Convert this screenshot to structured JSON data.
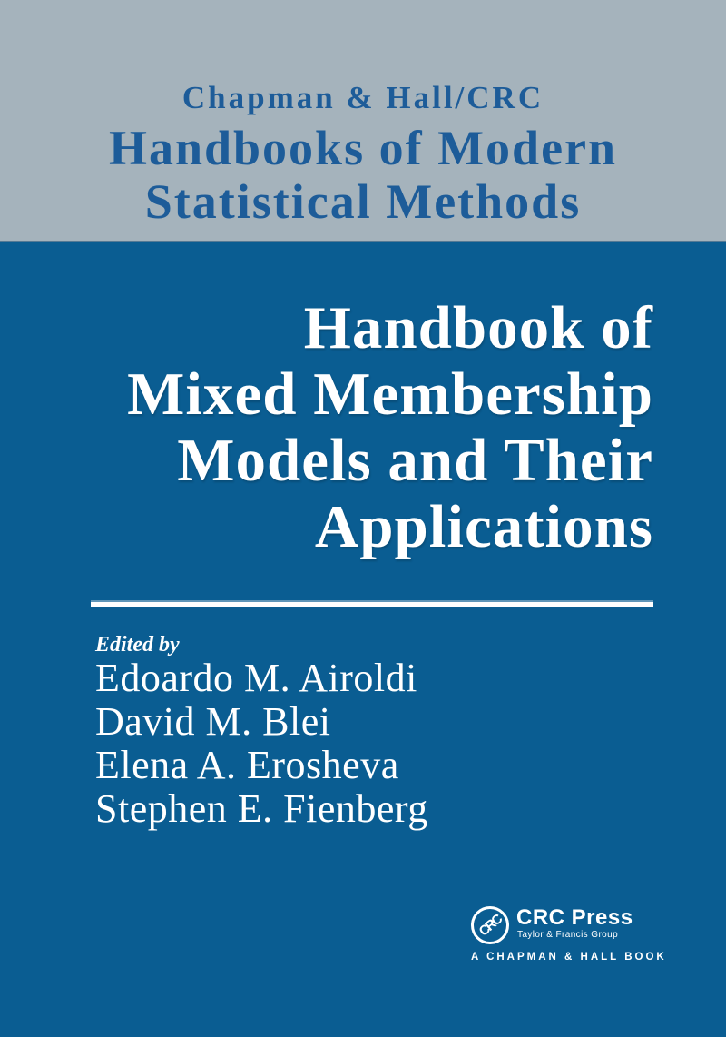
{
  "colors": {
    "band_gray": "#a5b3bc",
    "body_blue": "#0a5d92",
    "header_text_blue": "#1d5c99",
    "text_white": "#ffffff"
  },
  "header": {
    "imprint": "Chapman & Hall/CRC",
    "series_line1": "Handbooks of Modern",
    "series_line2": "Statistical Methods"
  },
  "title": {
    "lines": [
      "Handbook of",
      "Mixed Membership",
      "Models and Their",
      "Applications"
    ]
  },
  "editors": {
    "label": "Edited by",
    "names": [
      "Edoardo M. Airoldi",
      "David M. Blei",
      "Elena A. Erosheva",
      "Stephen E. Fienberg"
    ]
  },
  "publisher": {
    "circle_monogram": "CRC",
    "name": "CRC Press",
    "group": "Taylor & Francis Group",
    "tagline": "A CHAPMAN & HALL BOOK"
  }
}
